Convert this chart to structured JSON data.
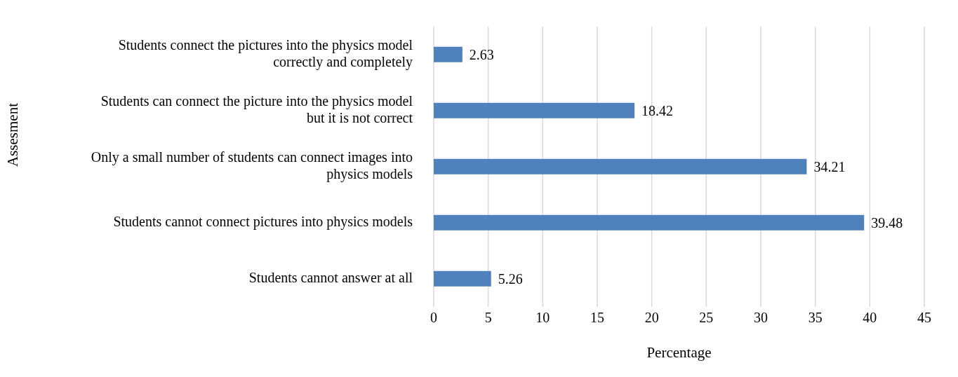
{
  "chart_data": {
    "type": "bar",
    "orientation": "horizontal",
    "xlabel": "Percentage",
    "ylabel": "Assesment",
    "categories": [
      "Students connect the pictures into the physics model correctly and completely",
      "Students can connect the picture into the physics model but it is not correct",
      "Only a small number of students can connect images into physics models",
      "Students cannot connect pictures into physics models",
      "Students cannot answer at all"
    ],
    "values": [
      2.63,
      18.42,
      34.21,
      39.48,
      5.26
    ],
    "color": "#4f81bd",
    "xlim": [
      0,
      45
    ],
    "xticks": [
      0,
      5,
      10,
      15,
      20,
      25,
      30,
      35,
      40,
      45
    ],
    "grid": "x",
    "data_labels": true,
    "legend": false
  }
}
